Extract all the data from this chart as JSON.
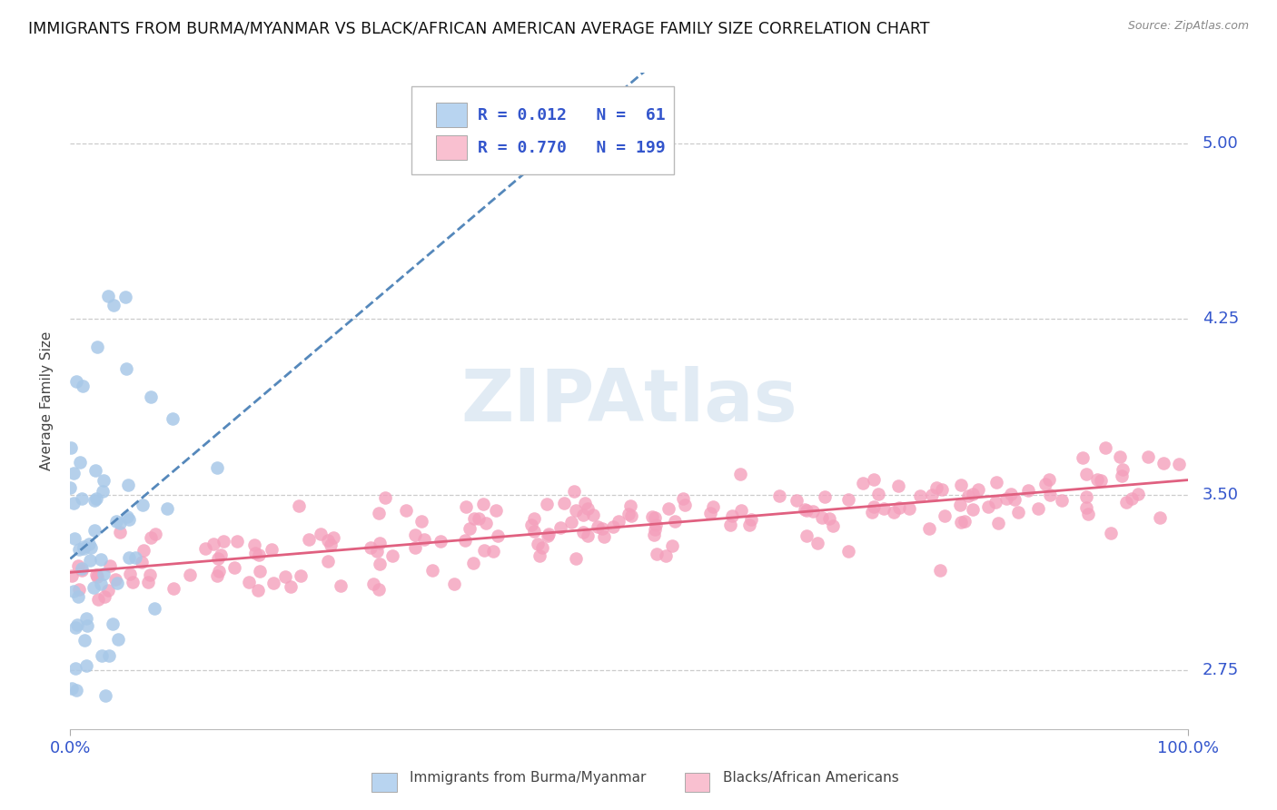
{
  "title": "IMMIGRANTS FROM BURMA/MYANMAR VS BLACK/AFRICAN AMERICAN AVERAGE FAMILY SIZE CORRELATION CHART",
  "source": "Source: ZipAtlas.com",
  "ylabel": "Average Family Size",
  "xlim": [
    0,
    1
  ],
  "ylim": [
    2.5,
    5.3
  ],
  "yticks": [
    2.75,
    3.5,
    4.25,
    5.0
  ],
  "xtick_labels": [
    "0.0%",
    "100.0%"
  ],
  "series": [
    {
      "name": "Immigrants from Burma/Myanmar",
      "R": 0.012,
      "N": 61,
      "marker_color": "#a8c8e8",
      "line_color": "#5588bb",
      "legend_patch_color": "#b8d4f0"
    },
    {
      "name": "Blacks/African Americans",
      "R": 0.77,
      "N": 199,
      "marker_color": "#f4a0bc",
      "line_color": "#e06080",
      "legend_patch_color": "#f9c0d0"
    }
  ],
  "legend_R_color": "#3355cc",
  "watermark": "ZIPAtlas",
  "background_color": "#ffffff",
  "grid_color": "#cccccc",
  "axis_color": "#3355cc",
  "title_color": "#111111",
  "title_fontsize": 12.5,
  "label_fontsize": 11,
  "tick_fontsize": 13,
  "seed": 42
}
